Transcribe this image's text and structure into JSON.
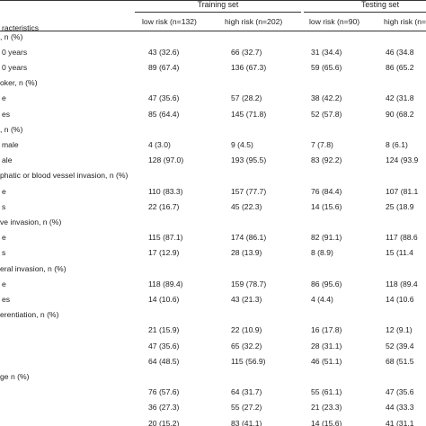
{
  "table": {
    "first_header": "racteristics",
    "groups": [
      "Training set",
      "Testing set"
    ],
    "subheaders": [
      "low risk (n=132)",
      "high risk (n=202)",
      "low risk (n=90)",
      "high risk (n=1"
    ],
    "rows": [
      {
        "label": ", n (%)",
        "values": []
      },
      {
        "label": "0 years",
        "values": [
          "43 (32.6)",
          "66 (32.7)",
          "31 (34.4)",
          "46 (34.8"
        ]
      },
      {
        "label": "0 years",
        "values": [
          "89 (67.4)",
          "136 (67.3)",
          "59 (65.6)",
          "86 (65.2"
        ]
      },
      {
        "label": "oker, n (%)",
        "values": []
      },
      {
        "label": "e",
        "values": [
          "47 (35.6)",
          "57 (28.2)",
          "38 (42.2)",
          "42 (31.8"
        ]
      },
      {
        "label": "es",
        "values": [
          "85 (64.4)",
          "145 (71.8)",
          "52 (57.8)",
          "90 (68.2"
        ]
      },
      {
        "label": ", n (%)",
        "values": []
      },
      {
        "label": "male",
        "values": [
          "4 (3.0)",
          "9 (4.5)",
          "7 (7.8)",
          "8 (6.1)"
        ]
      },
      {
        "label": "ale",
        "values": [
          "128 (97.0)",
          "193 (95.5)",
          "83 (92.2)",
          "124 (93.9"
        ]
      },
      {
        "label": "phatic or blood vessel invasion, n (%)",
        "values": []
      },
      {
        "label": "e",
        "values": [
          "110 (83.3)",
          "157 (77.7)",
          "76 (84.4)",
          "107 (81.1"
        ]
      },
      {
        "label": "s",
        "values": [
          "22 (16.7)",
          "45 (22.3)",
          "14 (15.6)",
          "25 (18.9"
        ]
      },
      {
        "label": "ve invasion, n (%)",
        "values": []
      },
      {
        "label": "e",
        "values": [
          "115 (87.1)",
          "174 (86.1)",
          "82 (91.1)",
          "117 (88.6"
        ]
      },
      {
        "label": "s",
        "values": [
          "17 (12.9)",
          "28 (13.9)",
          "8 (8.9)",
          "15 (11.4"
        ]
      },
      {
        "label": "eral invasion, n (%)",
        "values": []
      },
      {
        "label": "e",
        "values": [
          "118 (89.4)",
          "159 (78.7)",
          "86 (95.6)",
          "118 (89.4"
        ]
      },
      {
        "label": "es",
        "values": [
          "14 (10.6)",
          "43 (21.3)",
          "4 (4.4)",
          "14 (10.6"
        ]
      },
      {
        "label": "erentiation, n (%)",
        "values": []
      },
      {
        "label": "",
        "values": [
          "21 (15.9)",
          "22 (10.9)",
          "16 (17.8)",
          "12 (9.1)"
        ]
      },
      {
        "label": "",
        "values": [
          "47 (35.6)",
          "65 (32.2)",
          "28 (31.1)",
          "52 (39.4"
        ]
      },
      {
        "label": "",
        "values": [
          "64 (48.5)",
          "115 (56.9)",
          "46 (51.1)",
          "68 (51.5"
        ]
      },
      {
        "label": "ge n (%)",
        "values": []
      },
      {
        "label": "",
        "values": [
          "76 (57.6)",
          "64 (31.7)",
          "55 (61.1)",
          "47 (35.6"
        ]
      },
      {
        "label": "",
        "values": [
          "36 (27.3)",
          "55 (27.2)",
          "21 (23.3)",
          "44 (33.3"
        ]
      },
      {
        "label": "",
        "values": [
          "20 (15.2)",
          "83 (41.1)",
          "14 (15.6)",
          "41 (31.1"
        ]
      }
    ]
  }
}
